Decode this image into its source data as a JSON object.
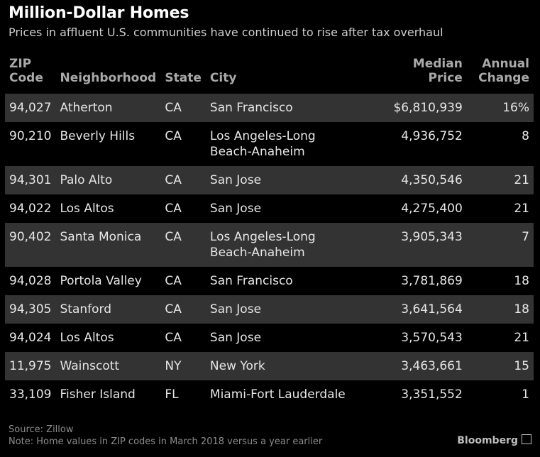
{
  "title": "Million-Dollar Homes",
  "subtitle": "Prices in affluent U.S. communities have continued to rise after tax overhaul",
  "chart_data": {
    "type": "table",
    "columns": [
      {
        "key": "zip",
        "label_line1": "ZIP",
        "label_line2": "Code"
      },
      {
        "key": "neighborhood",
        "label_line1": "",
        "label_line2": "Neighborhood"
      },
      {
        "key": "state",
        "label_line1": "",
        "label_line2": "State"
      },
      {
        "key": "city",
        "label_line1": "",
        "label_line2": "City"
      },
      {
        "key": "median_price",
        "label_line1": "Median",
        "label_line2": "Price"
      },
      {
        "key": "annual_change",
        "label_line1": "Annual",
        "label_line2": "Change"
      }
    ],
    "rows": [
      {
        "zip": "94,027",
        "neighborhood": "Atherton",
        "state": "CA",
        "city": "San Francisco",
        "median_price": "$6,810,939",
        "annual_change": "16%"
      },
      {
        "zip": "90,210",
        "neighborhood": "Beverly Hills",
        "state": "CA",
        "city": "Los Angeles-Long Beach-Anaheim",
        "median_price": "4,936,752",
        "annual_change": "8"
      },
      {
        "zip": "94,301",
        "neighborhood": "Palo Alto",
        "state": "CA",
        "city": "San Jose",
        "median_price": "4,350,546",
        "annual_change": "21"
      },
      {
        "zip": "94,022",
        "neighborhood": "Los Altos",
        "state": "CA",
        "city": "San Jose",
        "median_price": "4,275,400",
        "annual_change": "21"
      },
      {
        "zip": "90,402",
        "neighborhood": "Santa Monica",
        "state": "CA",
        "city": "Los Angeles-Long Beach-Anaheim",
        "median_price": "3,905,343",
        "annual_change": "7"
      },
      {
        "zip": "94,028",
        "neighborhood": "Portola Valley",
        "state": "CA",
        "city": "San Francisco",
        "median_price": "3,781,869",
        "annual_change": "18"
      },
      {
        "zip": "94,305",
        "neighborhood": "Stanford",
        "state": "CA",
        "city": "San Jose",
        "median_price": "3,641,564",
        "annual_change": "18"
      },
      {
        "zip": "94,024",
        "neighborhood": "Los Altos",
        "state": "CA",
        "city": "San Jose",
        "median_price": "3,570,543",
        "annual_change": "21"
      },
      {
        "zip": "11,975",
        "neighborhood": "Wainscott",
        "state": "NY",
        "city": "New York",
        "median_price": "3,463,661",
        "annual_change": "15"
      },
      {
        "zip": "33,109",
        "neighborhood": "Fisher Island",
        "state": "FL",
        "city": "Miami-Fort Lauderdale",
        "median_price": "3,351,552",
        "annual_change": "1"
      }
    ]
  },
  "source": "Source: Zillow",
  "note": "Note: Home values in ZIP codes in March 2018 versus a year earlier",
  "brand": "Bloomberg",
  "colors": {
    "background": "#000000",
    "row_shade": "#333333",
    "header_text": "#a9a9a9"
  }
}
